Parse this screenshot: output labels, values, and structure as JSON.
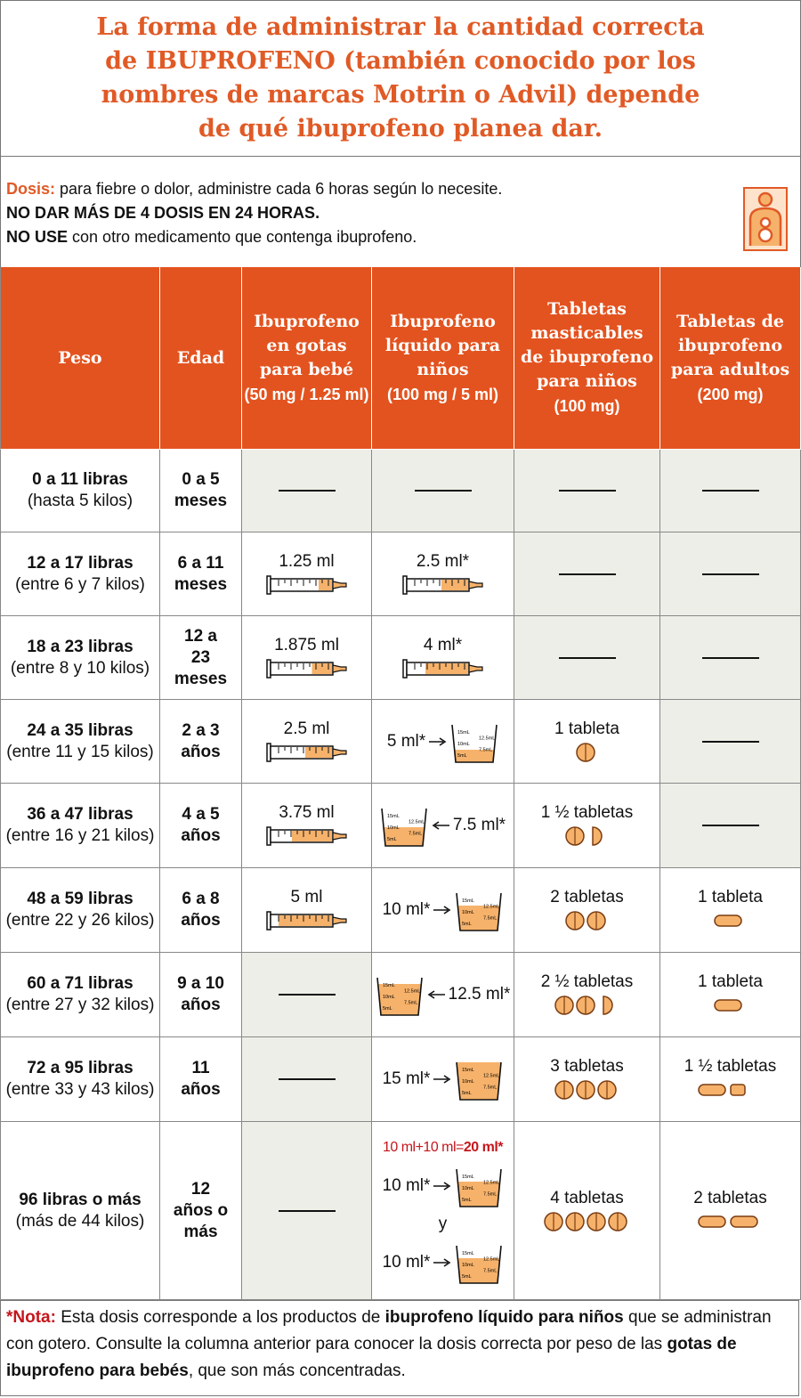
{
  "title": "La forma de administrar la cantidad correcta de IBUPROFENO (también conocido por los nombres de marcas Motrin o Advil) depende de qué ibuprofeno planea dar.",
  "dosis": {
    "label": "Dosis:",
    "text": "para fiebre o dolor, administre cada 6 horas según lo necesite.",
    "line2": "NO DAR MÁS DE 4 DOSIS EN 24 HORAS.",
    "line3_bold": "NO USE",
    "line3": "con otro medicamento que contenga ibuprofeno."
  },
  "cup_scale": [
    "15mL",
    "12.5mL",
    "10mL",
    "7.5mL",
    "5mL"
  ],
  "table": {
    "headers": [
      {
        "name": "Peso"
      },
      {
        "name": "Edad"
      },
      {
        "name": "Ibuprofeno en gotas para bebé",
        "detail": "(50 mg / 1.25 ml)"
      },
      {
        "name": "Ibuprofeno líquido para niños",
        "detail": "(100 mg / 5 ml)"
      },
      {
        "name": "Tabletas masticables de ibuprofeno para niños",
        "detail": "(100 mg)"
      },
      {
        "name": "Tabletas de ibuprofeno para adultos",
        "detail": "(200 mg)"
      }
    ],
    "rows": [
      {
        "weight": "0 a 11 libras",
        "weight_detail": "(hasta 5 kilos)",
        "age": "0 a 5 meses",
        "drops": null,
        "liquid": null,
        "chewable": null,
        "adult": null
      },
      {
        "weight": "12 a 17 libras",
        "weight_detail": "(entre 6 y 7 kilos)",
        "age": "6 a 11 meses",
        "drops": {
          "dose": "1.25 ml",
          "device": "syringe"
        },
        "liquid": {
          "dose": "2.5 ml*",
          "device": "syringe"
        },
        "chewable": null,
        "adult": null
      },
      {
        "weight": "18 a 23 libras",
        "weight_detail": "(entre 8 y 10 kilos)",
        "age": "12 a 23 meses",
        "drops": {
          "dose": "1.875 ml",
          "device": "syringe"
        },
        "liquid": {
          "dose": "4 ml*",
          "device": "syringe"
        },
        "chewable": null,
        "adult": null
      },
      {
        "weight": "24 a 35 libras",
        "weight_detail": "(entre 11 y 15 kilos)",
        "age": "2 a 3 años",
        "drops": {
          "dose": "2.5 ml",
          "device": "syringe"
        },
        "liquid": {
          "dose": "5 ml*",
          "device": "cup",
          "label_side": "left"
        },
        "chewable": {
          "dose": "1 tableta"
        },
        "adult": null
      },
      {
        "weight": "36 a 47 libras",
        "weight_detail": "(entre 16 y 21 kilos)",
        "age": "4 a 5 años",
        "drops": {
          "dose": "3.75 ml",
          "device": "syringe"
        },
        "liquid": {
          "dose": "7.5 ml*",
          "device": "cup",
          "label_side": "right"
        },
        "chewable": {
          "dose": "1 ½ tabletas"
        },
        "adult": null
      },
      {
        "weight": "48 a 59 libras",
        "weight_detail": "(entre 22 y 26 kilos)",
        "age": "6 a 8 años",
        "drops": {
          "dose": "5 ml",
          "device": "syringe"
        },
        "liquid": {
          "dose": "10 ml*",
          "device": "cup",
          "label_side": "left"
        },
        "chewable": {
          "dose": "2 tabletas"
        },
        "adult": {
          "dose": "1 tableta"
        }
      },
      {
        "weight": "60 a 71 libras",
        "weight_detail": "(entre 27 y 32 kilos)",
        "age": "9 a 10 años",
        "drops": null,
        "liquid": {
          "dose": "12.5 ml*",
          "device": "cup",
          "label_side": "right"
        },
        "chewable": {
          "dose": "2 ½ tabletas"
        },
        "adult": {
          "dose": "1 tableta"
        }
      },
      {
        "weight": "72 a 95 libras",
        "weight_detail": "(entre 33 y 43 kilos)",
        "age": "11 años",
        "drops": null,
        "liquid": {
          "dose": "15 ml*",
          "device": "cup",
          "label_side": "left"
        },
        "chewable": {
          "dose": "3 tabletas"
        },
        "adult": {
          "dose": "1 ½ tabletas"
        }
      },
      {
        "weight": "96 libras o más",
        "weight_detail": "(más de 44 kilos)",
        "age": "12 años o más",
        "drops": null,
        "liquid": {
          "summary": "10 ml+10 ml=",
          "summary_bold": "20 ml*",
          "doses": [
            {
              "dose": "10 ml*",
              "device": "cup",
              "label_side": "left"
            },
            {
              "dose": "10 ml*",
              "device": "cup",
              "label_side": "left"
            }
          ],
          "joiner": "y"
        },
        "chewable": {
          "dose": "4 tabletas"
        },
        "adult": {
          "dose": "2 tabletas"
        }
      }
    ]
  },
  "note": {
    "label": "*Nota:",
    "parts": [
      "Esta dosis corresponde a los productos de ",
      "ibuprofeno líquido para niños",
      " que se administran con gotero. Consulte la columna anterior para conocer la dosis correcta por peso de las ",
      "gotas de ibuprofeno para bebés",
      ", que son más concentradas."
    ]
  }
}
